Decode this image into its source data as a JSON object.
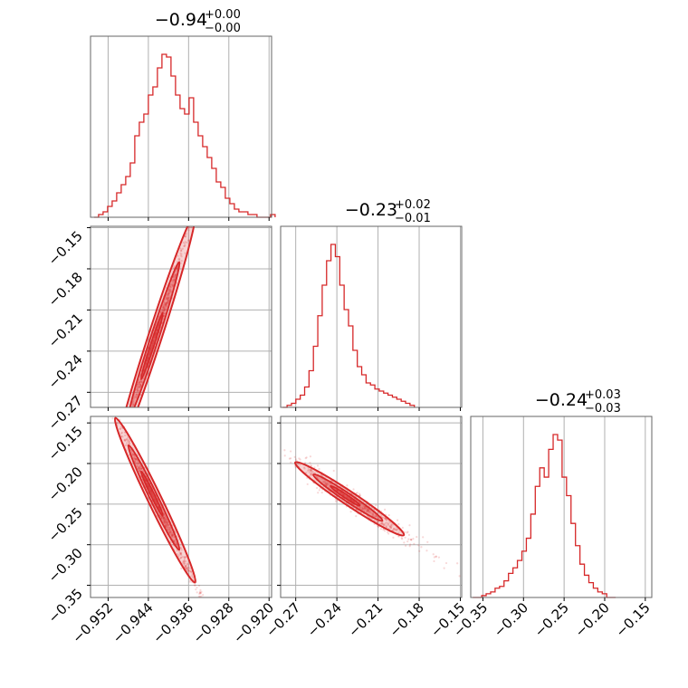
{
  "figure": {
    "background": "#ffffff",
    "accent_color": "#d62728",
    "grid": true
  },
  "chart_data": {
    "type": "corner",
    "parameters": [
      "",
      "",
      ""
    ],
    "titles": [
      {
        "median": "−0.94",
        "plus": "+0.00",
        "minus": "−0.00"
      },
      {
        "median": "−0.23",
        "plus": "+0.02",
        "minus": "−0.01"
      },
      {
        "median": "−0.24",
        "plus": "+0.03",
        "minus": "−0.03"
      }
    ],
    "ranges": [
      [
        -0.9555,
        -0.9195
      ],
      [
        -0.281,
        -0.149
      ],
      [
        -0.365,
        -0.142
      ]
    ],
    "ticks": [
      [
        -0.952,
        -0.944,
        -0.936,
        -0.928,
        -0.92
      ],
      [
        -0.27,
        -0.24,
        -0.21,
        -0.18,
        -0.15
      ],
      [
        -0.35,
        -0.3,
        -0.25,
        -0.2,
        -0.15
      ]
    ],
    "tick_labels": [
      [
        "−0.952",
        "−0.944",
        "−0.936",
        "−0.928",
        "−0.920"
      ],
      [
        "−0.27",
        "−0.24",
        "−0.21",
        "−0.18",
        "−0.15"
      ],
      [
        "−0.35",
        "−0.30",
        "−0.25",
        "−0.20",
        "−0.15"
      ]
    ],
    "histograms": [
      {
        "param": 0,
        "edges_start": -0.9548,
        "edge_step": 0.0009,
        "counts": [
          0,
          1,
          2,
          4,
          6,
          9,
          12,
          15,
          20,
          30,
          35,
          38,
          45,
          48,
          55,
          60,
          59,
          52,
          45,
          40,
          38,
          44,
          35,
          30,
          26,
          22,
          18,
          13,
          11,
          7,
          5,
          3,
          2,
          2,
          1,
          1,
          0,
          0,
          0,
          1
        ]
      },
      {
        "param": 1,
        "edges_start": -0.2795,
        "edge_step": 0.0032,
        "counts": [
          0,
          1,
          2,
          4,
          6,
          10,
          18,
          30,
          45,
          60,
          72,
          80,
          74,
          60,
          48,
          40,
          28,
          20,
          16,
          12,
          11,
          9,
          8,
          7,
          6,
          5,
          4,
          3,
          2,
          1
        ]
      },
      {
        "param": 2,
        "edges_start": -0.3625,
        "edge_step": 0.0055,
        "counts": [
          0,
          0,
          1,
          2,
          3,
          5,
          6,
          9,
          13,
          16,
          20,
          25,
          32,
          45,
          60,
          70,
          65,
          80,
          88,
          85,
          65,
          55,
          40,
          28,
          18,
          12,
          8,
          5,
          3,
          2,
          0,
          0
        ]
      }
    ],
    "pairs": [
      {
        "x": 0,
        "y": 1,
        "slope": 11.3,
        "x_mean": -0.9429,
        "x_sd": 0.0036,
        "y_scatter": 0.004,
        "contours": [
          "solid-ellipse",
          "inner-ellipse"
        ]
      },
      {
        "x": 0,
        "y": 2,
        "slope": -12.8,
        "x_mean": -0.9429,
        "x_sd": 0.0036,
        "y_scatter": 0.006,
        "contours": [
          "solid-ellipse",
          "inner-ellipse"
        ]
      },
      {
        "x": 1,
        "y": 2,
        "slope": -1.13,
        "x_mean": -0.232,
        "x_sd": 0.018,
        "y_scatter": 0.006,
        "contours": [
          "solid-ellipse",
          "inner-ellipse"
        ]
      }
    ]
  }
}
